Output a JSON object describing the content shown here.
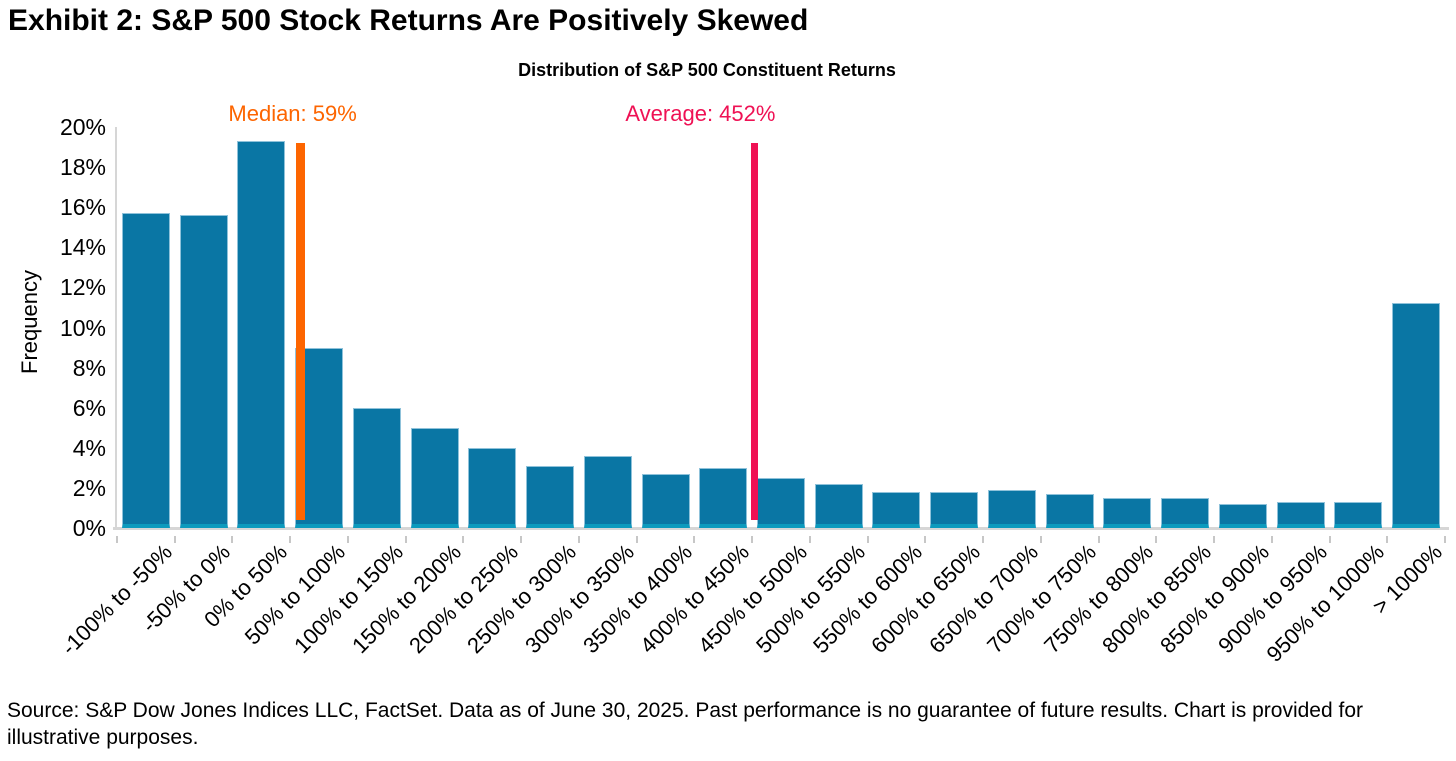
{
  "exhibit_title": "Exhibit 2: S&P 500 Stock Returns Are Positively Skewed",
  "source_note": "Source: S&P Dow Jones Indices LLC, FactSet. Data as of June 30, 2025. Past performance is no guarantee of future results. Chart is provided for illustrative purposes.",
  "chart_data": {
    "type": "bar",
    "title": "Distribution of S&P 500 Constituent Returns",
    "xlabel": "",
    "ylabel": "Frequency",
    "ylim": [
      0,
      20
    ],
    "ytick_step": 2,
    "ytick_labels": [
      "0%",
      "2%",
      "4%",
      "6%",
      "8%",
      "10%",
      "12%",
      "14%",
      "16%",
      "18%",
      "20%"
    ],
    "grid": false,
    "legend": "none",
    "categories": [
      "-100% to -50%",
      "-50% to 0%",
      "0% to 50%",
      "50% to 100%",
      "100% to 150%",
      "150% to 200%",
      "200% to 250%",
      "250% to 300%",
      "300% to 350%",
      "350% to 400%",
      "400% to 450%",
      "450% to 500%",
      "500% to 550%",
      "550% to 600%",
      "600% to 650%",
      "650% to 700%",
      "700% to 750%",
      "750% to 800%",
      "800% to 850%",
      "850% to 900%",
      "900% to 950%",
      "950% to 1000%",
      "> 1000%"
    ],
    "values": [
      15.7,
      15.6,
      19.3,
      9.0,
      6.0,
      5.0,
      4.0,
      3.1,
      3.6,
      2.7,
      3.0,
      2.5,
      2.2,
      1.8,
      1.8,
      1.9,
      1.7,
      1.5,
      1.5,
      1.2,
      1.3,
      1.3,
      11.2
    ],
    "bucket_start": -100,
    "bucket_width": 50,
    "bar_color": "#0a76a4",
    "bar_edge_color": "#8fc2da",
    "bar_base_color": "#0c9abd",
    "axis_color": "#d6d6d6",
    "markers": [
      {
        "name": "median",
        "label": "Median: 59%",
        "value": 59,
        "color": "#fd6500"
      },
      {
        "name": "average",
        "label": "Average: 452%",
        "value": 452,
        "color": "#ef1154"
      }
    ]
  }
}
